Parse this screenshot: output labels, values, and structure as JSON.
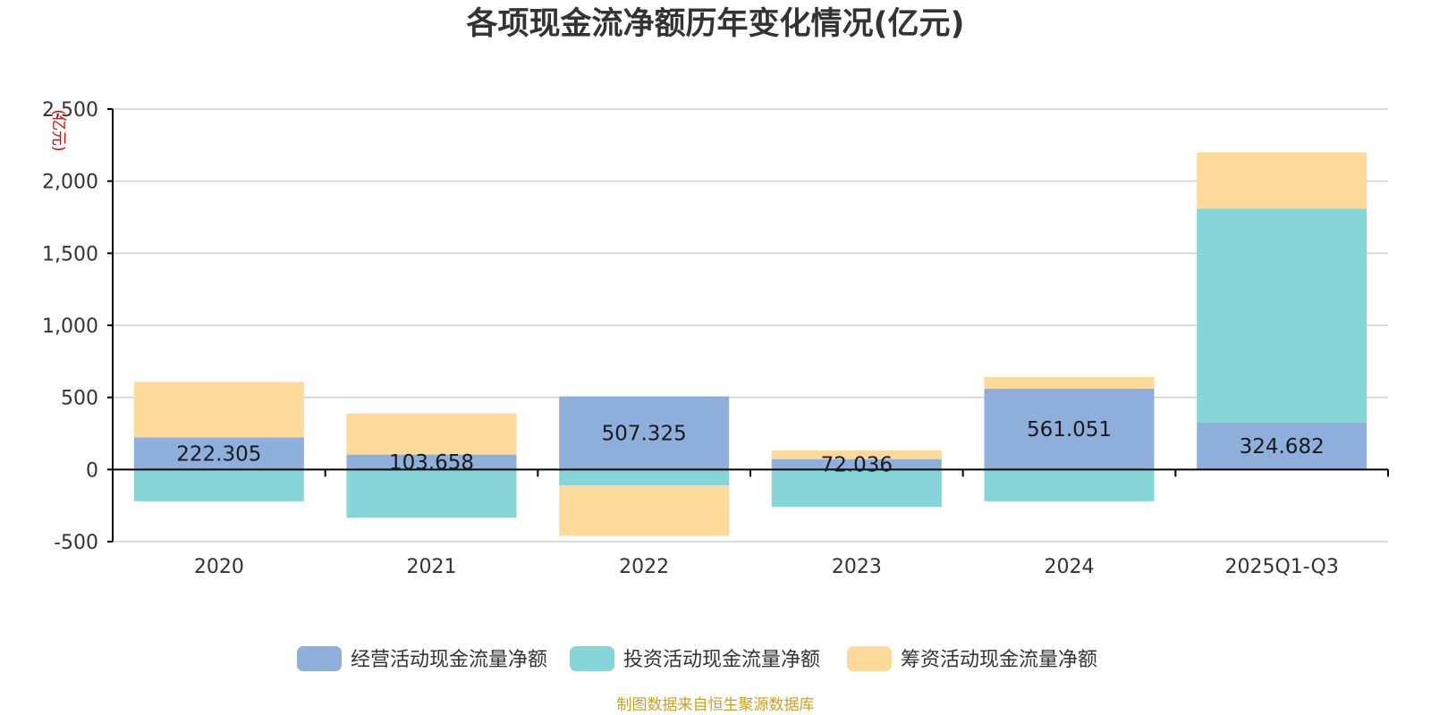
{
  "chart_data": {
    "type": "bar",
    "stacked": true,
    "title": "各项现金流净额历年变化情况(亿元)",
    "ylabel": "(亿元)",
    "xlabel": "",
    "ylim": [
      -500,
      2500
    ],
    "yticks": [
      -500,
      0,
      500,
      1000,
      1500,
      2000,
      2500
    ],
    "ytick_labels": [
      "-500",
      "0",
      "500",
      "1,000",
      "1,500",
      "2,000",
      "2,500"
    ],
    "grid": true,
    "legend_position": "bottom-center",
    "categories": [
      "2020",
      "2021",
      "2022",
      "2023",
      "2024",
      "2025Q1-Q3"
    ],
    "series": [
      {
        "name": "经营活动现金流量净额",
        "color": "#8eaedc",
        "values": [
          222.305,
          103.658,
          507.325,
          72.036,
          561.051,
          324.682
        ],
        "labels": [
          "222.305",
          "103.658",
          "507.325",
          "72.036",
          "561.051",
          "324.682"
        ]
      },
      {
        "name": "投资活动现金流量净额",
        "color": "#86d5d8",
        "values": [
          -220,
          -335,
          -110,
          -260,
          -220,
          1485
        ]
      },
      {
        "name": "筹资活动现金流量净额",
        "color": "#fdd99a",
        "values": [
          385,
          285,
          -350,
          60,
          80,
          390
        ]
      }
    ]
  },
  "footer": {
    "text": "制图数据来自恒生聚源数据库",
    "color": "#c9a020"
  }
}
